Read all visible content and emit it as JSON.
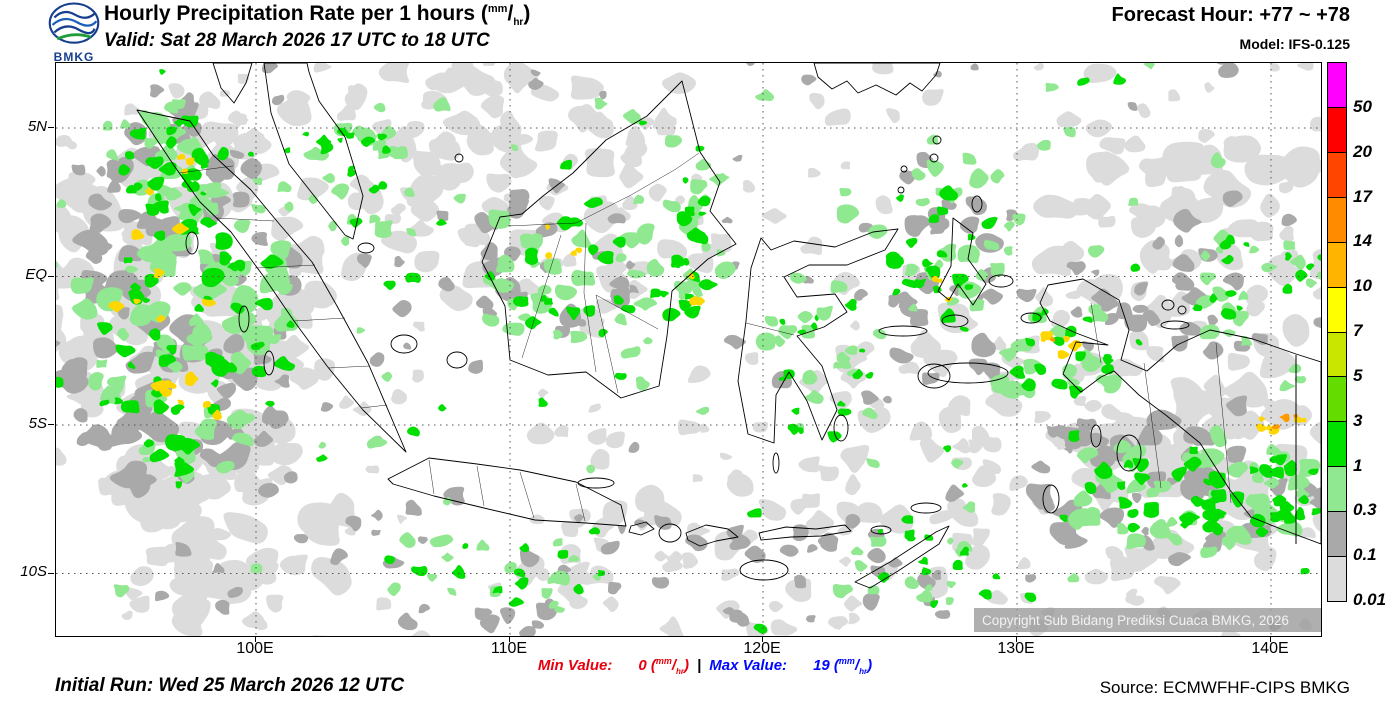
{
  "header": {
    "logo_text": "BMKG",
    "title_prefix": "Hourly Precipitation Rate per 1 hours (",
    "title_unit_num": "mm",
    "title_unit_sep": "/",
    "title_unit_den": "hr",
    "title_suffix": ")",
    "valid_line": "Valid: Sat 28 March 2026 17 UTC to 18 UTC",
    "forecast_hour": "Forecast Hour: +77 ~ +78",
    "model": "Model: IFS-0.125"
  },
  "map": {
    "lat_labels": [
      "5N",
      "EQ",
      "5S",
      "10S"
    ],
    "lon_labels": [
      "100E",
      "110E",
      "120E",
      "130E",
      "140E"
    ],
    "copyright": "Copyright Sub Bidang Prediksi Cuaca BMKG, 2026",
    "palette": {
      "lightgray": "#DCDCDC",
      "gray": "#A9A9A9",
      "lightgreen": "#90E890",
      "green": "#00DF00",
      "yellow": "#FFD700",
      "orange": "#FF9900"
    }
  },
  "legend": {
    "labels": [
      "50",
      "20",
      "17",
      "14",
      "10",
      "7",
      "5",
      "3",
      "1",
      "0.3",
      "0.1",
      "0.01"
    ],
    "colors": [
      "#FF00FF",
      "#FF0000",
      "#FF4500",
      "#FF8C00",
      "#FFB400",
      "#FFFF00",
      "#C8E600",
      "#64DC00",
      "#00DF00",
      "#90E890",
      "#A9A9A9",
      "#DCDCDC"
    ]
  },
  "footer": {
    "initial_run": "Initial Run: Wed 25 March 2026 12 UTC",
    "min_label": "Min Value:",
    "min_value": "0",
    "divider": "|",
    "max_label": "Max Value:",
    "max_value": "19",
    "unit_open": "(",
    "unit_num": "mm",
    "unit_sep": "/",
    "unit_den": "hr",
    "unit_close": ")",
    "source": "Source: ECMWFHF-CIPS BMKG"
  }
}
